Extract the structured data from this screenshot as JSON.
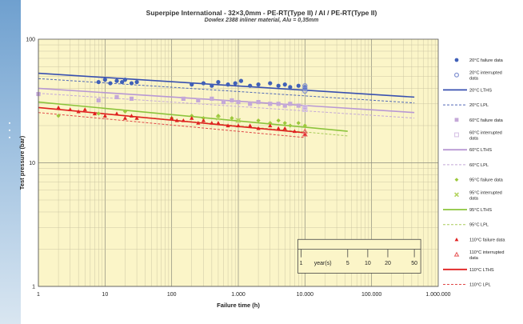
{
  "chart_data": {
    "type": "scatter",
    "title": "Superpipe International - 32×3,0mm - PE-RT(Type II) / Al / PE-RT(Type II)",
    "subtitle": "Dowlex 2388 inliner material, Alu = 0,35mm",
    "xlabel": "Failure time (h)",
    "ylabel": "Test pressure (bar)",
    "xscale": "log",
    "yscale": "log",
    "xlim": [
      1,
      1000000
    ],
    "ylim": [
      1,
      100
    ],
    "x_tick_labels": [
      "1",
      "10",
      "100",
      "1.000",
      "10.000",
      "100.000",
      "1.000.000"
    ],
    "y_tick_labels": [
      "1",
      "10",
      "100"
    ],
    "grid": true,
    "legend_position": "right",
    "years_scale": {
      "labels": [
        "1",
        "year(s)",
        "5",
        "10",
        "20",
        "50"
      ],
      "hours": [
        8760,
        43800,
        87600,
        175200,
        438000
      ]
    },
    "series": [
      {
        "name": "20°C failure data",
        "kind": "points",
        "marker": "circle",
        "color": "#4060b8",
        "x": [
          8,
          10,
          12,
          15,
          18,
          20,
          25,
          30,
          200,
          300,
          400,
          500,
          700,
          900,
          1100,
          1500,
          2000,
          3000,
          4000,
          5000,
          6000,
          8000,
          10000,
          10000
        ],
        "y": [
          45,
          47,
          44,
          46,
          45,
          47,
          44,
          45,
          43,
          44,
          42,
          45,
          43,
          44,
          46,
          42,
          43,
          44,
          42,
          43,
          41,
          42,
          40,
          41
        ]
      },
      {
        "name": "20°C interrupted data",
        "kind": "points",
        "marker": "circle-open",
        "color": "#7f8fd0",
        "x": [
          10000,
          10000,
          10000
        ],
        "y": [
          42,
          40,
          38
        ]
      },
      {
        "name": "20°C LTHS",
        "kind": "line",
        "style": "solid",
        "color": "#3850b0",
        "x": [
          1,
          438000
        ],
        "y": [
          53,
          34
        ]
      },
      {
        "name": "20°C LPL",
        "kind": "line",
        "style": "dashed",
        "color": "#5068b8",
        "x": [
          1,
          438000
        ],
        "y": [
          48,
          30.5
        ]
      },
      {
        "name": "60°C failure data",
        "kind": "points",
        "marker": "square",
        "color": "#c4a8d8",
        "x": [
          1,
          8,
          15,
          25,
          150,
          250,
          400,
          600,
          800,
          1000,
          1500,
          2000,
          3000,
          4000,
          5000,
          6000,
          8000,
          10000
        ],
        "y": [
          36,
          32,
          34,
          33,
          33,
          32,
          33,
          31,
          32,
          31,
          30,
          31,
          30,
          30,
          29,
          30,
          29,
          28
        ]
      },
      {
        "name": "60°C interrupted data",
        "kind": "points",
        "marker": "square-open",
        "color": "#d8c4e6",
        "x": [
          10000,
          10000
        ],
        "y": [
          28,
          27
        ]
      },
      {
        "name": "60°C LTHS",
        "kind": "line",
        "style": "solid",
        "color": "#b898d4",
        "x": [
          1,
          438000
        ],
        "y": [
          40,
          25.5
        ]
      },
      {
        "name": "60°C LPL",
        "kind": "line",
        "style": "dashed",
        "color": "#c4a8d8",
        "x": [
          1,
          438000
        ],
        "y": [
          36.5,
          23
        ]
      },
      {
        "name": "95°C failure data",
        "kind": "points",
        "marker": "diamond",
        "color": "#9cc83c",
        "x": [
          2,
          8,
          20,
          100,
          200,
          300,
          500,
          800,
          1000,
          2000,
          3000,
          4000,
          5000,
          6000,
          8000,
          10000
        ],
        "y": [
          24,
          25,
          26,
          23,
          24,
          23,
          24,
          23,
          22,
          22,
          21,
          22,
          21,
          20,
          21,
          20
        ]
      },
      {
        "name": "95°C interrupted data",
        "kind": "points",
        "marker": "x",
        "color": "#b4d460",
        "x": [
          500,
          1000
        ],
        "y": [
          23,
          22
        ]
      },
      {
        "name": "95°C LTHS",
        "kind": "line",
        "style": "solid",
        "color": "#8cc43c",
        "x": [
          1,
          43800
        ],
        "y": [
          31,
          18
        ]
      },
      {
        "name": "95°C LPL",
        "kind": "line",
        "style": "dashed",
        "color": "#a8cc58",
        "x": [
          1,
          43800
        ],
        "y": [
          28,
          16.5
        ]
      },
      {
        "name": "110°C failure data",
        "kind": "points",
        "marker": "triangle",
        "color": "#e02020",
        "x": [
          2,
          3,
          4,
          5,
          7,
          10,
          15,
          20,
          25,
          30,
          100,
          120,
          150,
          200,
          250,
          300,
          400,
          500,
          700,
          1000,
          1500,
          2000,
          3000,
          4000,
          5000,
          7000,
          10000
        ],
        "y": [
          28,
          27,
          26,
          27,
          25,
          24,
          25,
          23,
          24,
          23,
          23,
          22,
          22,
          23,
          21,
          22,
          21,
          21,
          20,
          20,
          20,
          19,
          20,
          19,
          19,
          18,
          17
        ]
      },
      {
        "name": "110°C interrupted data",
        "kind": "points",
        "marker": "triangle-open",
        "color": "#e86060",
        "x": [
          10000,
          10000
        ],
        "y": [
          18,
          17
        ]
      },
      {
        "name": "110°C LTHS",
        "kind": "line",
        "style": "solid",
        "color": "#e02020",
        "x": [
          1,
          10000
        ],
        "y": [
          28,
          17.5
        ]
      },
      {
        "name": "110°C LPL",
        "kind": "line",
        "style": "dashed",
        "color": "#e04848",
        "x": [
          1,
          10000
        ],
        "y": [
          25.5,
          16
        ]
      }
    ]
  }
}
